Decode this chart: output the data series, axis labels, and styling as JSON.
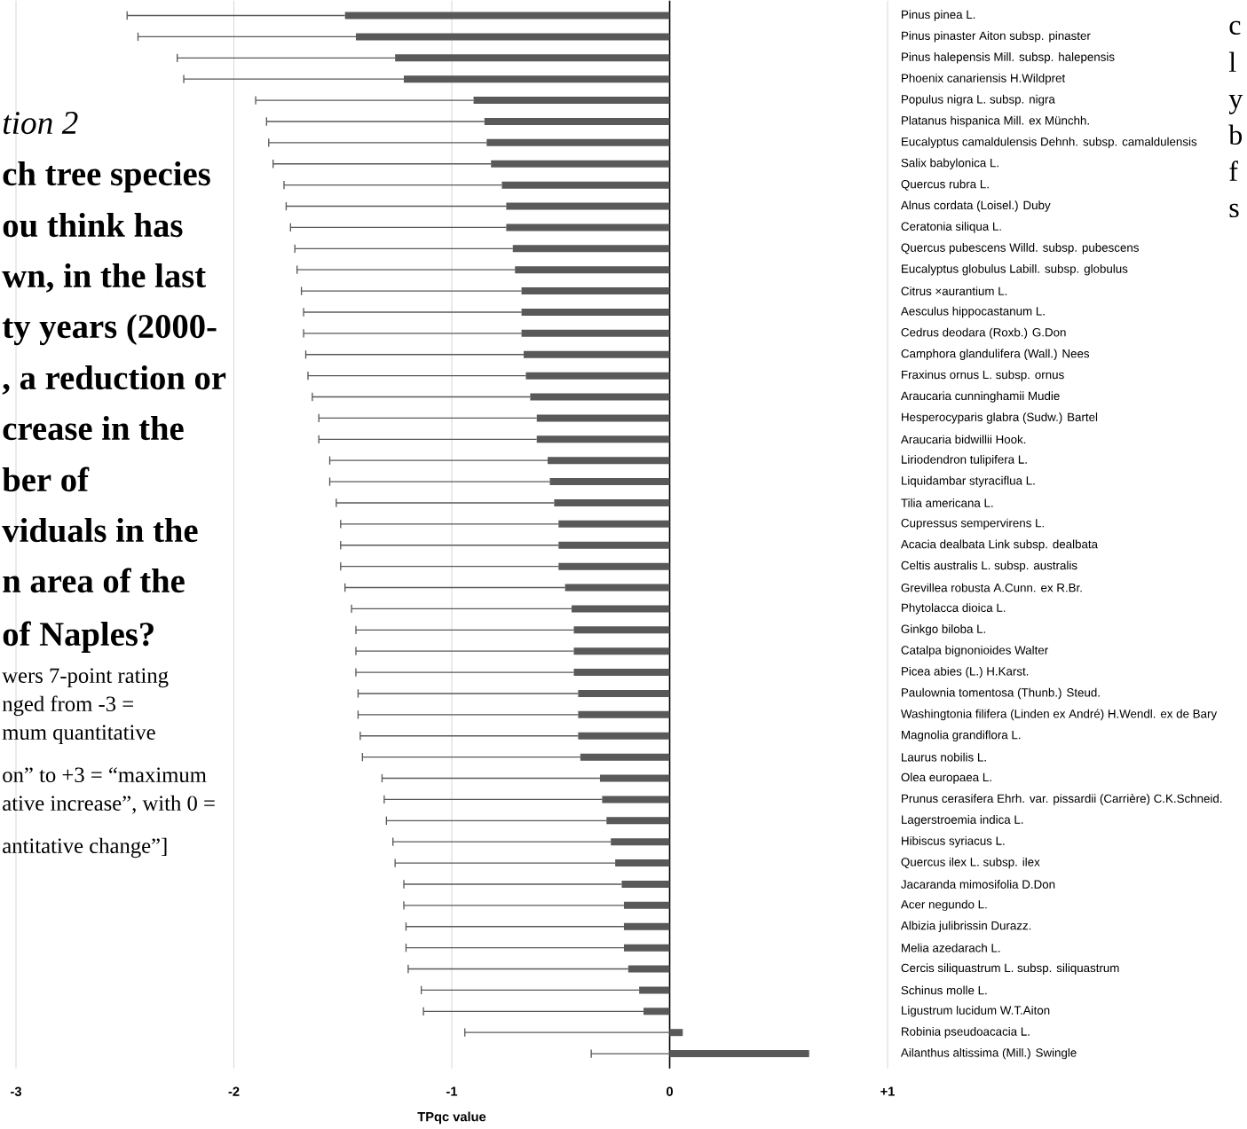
{
  "chart_data": {
    "type": "bar",
    "orientation": "horizontal",
    "xlabel": "TPqc value",
    "color": "#595959",
    "grid": "x",
    "xlim": [
      -3,
      1
    ],
    "xticks": [
      -3,
      -2,
      -1,
      0,
      {
        "value": 1,
        "label": "+1"
      }
    ],
    "categories": [
      "Pinus pinea L.",
      "Pinus pinaster Aiton subsp. pinaster",
      "Pinus halepensis Mill. subsp. halepensis",
      "Phoenix canariensis H.Wildpret",
      "Populus nigra L. subsp. nigra",
      "Platanus hispanica Mill. ex Münchh.",
      "Eucalyptus camaldulensis Dehnh. subsp. camaldulensis",
      "Salix babylonica L.",
      "Quercus rubra L.",
      "Alnus cordata (Loisel.) Duby",
      "Ceratonia siliqua L.",
      "Quercus pubescens Willd. subsp. pubescens",
      "Eucalyptus globulus Labill. subsp. globulus",
      "Citrus ×aurantium L.",
      "Aesculus hippocastanum L.",
      "Cedrus deodara (Roxb.) G.Don",
      "Camphora glandulifera (Wall.) Nees",
      "Fraxinus ornus L. subsp. ornus",
      "Araucaria cunninghamii Mudie",
      "Hesperocyparis glabra (Sudw.) Bartel",
      "Araucaria bidwillii Hook.",
      "Liriodendron tulipifera L.",
      "Liquidambar styraciflua L.",
      "Tilia americana L.",
      "Cupressus sempervirens L.",
      "Acacia dealbata Link subsp. dealbata",
      "Celtis australis L. subsp. australis",
      "Grevillea robusta A.Cunn. ex R.Br.",
      "Phytolacca dioica L.",
      "Ginkgo biloba L.",
      "Catalpa bignonioides Walter",
      "Picea abies (L.) H.Karst.",
      "Paulownia tomentosa (Thunb.) Steud.",
      "Washingtonia filifera (Linden ex André) H.Wendl. ex de Bary",
      "Magnolia grandiflora L.",
      "Laurus nobilis L.",
      "Olea europaea L.",
      "Prunus cerasifera Ehrh. var. pissardii (Carrière) C.K.Schneid.",
      "Lagerstroemia indica L.",
      "Hibiscus syriacus L.",
      "Quercus ilex L. subsp. ilex",
      "Jacaranda mimosifolia D.Don",
      "Acer negundo L.",
      "Albizia julibrissin Durazz.",
      "Melia azedarach L.",
      "Cercis siliquastrum L. subsp. siliquastrum",
      "Schinus molle L.",
      "Ligustrum lucidum W.T.Aiton",
      "Robinia pseudoacacia L.",
      "Ailanthus altissima (Mill.) Swingle"
    ],
    "values": [
      -1.49,
      -1.44,
      -1.26,
      -1.22,
      -0.9,
      -0.85,
      -0.84,
      -0.82,
      -0.77,
      -0.75,
      -0.75,
      -0.72,
      -0.71,
      -0.68,
      -0.68,
      -0.68,
      -0.67,
      -0.66,
      -0.64,
      -0.61,
      -0.61,
      -0.56,
      -0.55,
      -0.53,
      -0.51,
      -0.51,
      -0.51,
      -0.48,
      -0.45,
      -0.44,
      -0.44,
      -0.44,
      -0.42,
      -0.42,
      -0.42,
      -0.41,
      -0.32,
      -0.31,
      -0.29,
      -0.27,
      -0.25,
      -0.22,
      -0.21,
      -0.21,
      -0.21,
      -0.19,
      -0.14,
      -0.12,
      0.06,
      0.64
    ],
    "errors": [
      [
        -2.49,
        -1.49
      ],
      [
        -2.44,
        -1.44
      ],
      [
        -2.26,
        -1.26
      ],
      [
        -2.23,
        -1.22
      ],
      [
        -1.9,
        -0.9
      ],
      [
        -1.85,
        -0.85
      ],
      [
        -1.84,
        -0.84
      ],
      [
        -1.82,
        -0.82
      ],
      [
        -1.77,
        -0.77
      ],
      [
        -1.76,
        -0.75
      ],
      [
        -1.74,
        -0.75
      ],
      [
        -1.72,
        -0.72
      ],
      [
        -1.71,
        -0.71
      ],
      [
        -1.69,
        -0.68
      ],
      [
        -1.68,
        -0.68
      ],
      [
        -1.68,
        -0.68
      ],
      [
        -1.67,
        -0.67
      ],
      [
        -1.66,
        -0.66
      ],
      [
        -1.64,
        -0.64
      ],
      [
        -1.61,
        -0.61
      ],
      [
        -1.61,
        -0.61
      ],
      [
        -1.56,
        -0.56
      ],
      [
        -1.56,
        -0.55
      ],
      [
        -1.53,
        -0.53
      ],
      [
        -1.51,
        -0.51
      ],
      [
        -1.51,
        -0.51
      ],
      [
        -1.51,
        -0.51
      ],
      [
        -1.49,
        -0.48
      ],
      [
        -1.46,
        -0.45
      ],
      [
        -1.44,
        -0.44
      ],
      [
        -1.44,
        -0.44
      ],
      [
        -1.44,
        -0.44
      ],
      [
        -1.43,
        -0.42
      ],
      [
        -1.43,
        -0.42
      ],
      [
        -1.42,
        -0.42
      ],
      [
        -1.41,
        -0.41
      ],
      [
        -1.32,
        -0.32
      ],
      [
        -1.31,
        -0.31
      ],
      [
        -1.3,
        -0.29
      ],
      [
        -1.27,
        -0.27
      ],
      [
        -1.26,
        -0.25
      ],
      [
        -1.22,
        -0.22
      ],
      [
        -1.22,
        -0.21
      ],
      [
        -1.21,
        -0.21
      ],
      [
        -1.21,
        -0.21
      ],
      [
        -1.2,
        -0.19
      ],
      [
        -1.14,
        -0.14
      ],
      [
        -1.13,
        -0.12
      ],
      [
        -0.94,
        0.06
      ],
      [
        -0.36,
        0.64
      ]
    ],
    "annotations": [
      "tion 2",
      "ch tree species",
      "ou think has",
      "wn, in the last",
      "ty years (2000-",
      ", a reduction or",
      "crease in the",
      "ber of",
      "viduals in the",
      "n area of the",
      "of Naples?",
      "wers 7-point rating",
      "nged from -3 =",
      "mum quantitative",
      "on” to +3 = “maximum",
      "ative increase”, with 0 =",
      "antitative change”]",
      "c",
      "l",
      "y",
      "b",
      "f",
      "s"
    ]
  }
}
